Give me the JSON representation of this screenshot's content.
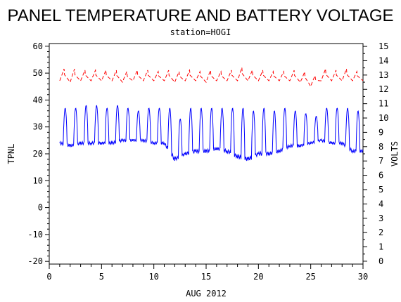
{
  "chart_data": {
    "type": "line",
    "title": "PANEL TEMPERATURE AND BATTERY VOLTAGE",
    "subtitle": "station=HOGI",
    "xlabel": "AUG 2012",
    "ylabel_left": "TPNL",
    "ylabel_right": "VOLTS",
    "xlim": [
      0,
      30
    ],
    "ylim_left": [
      -21,
      61
    ],
    "ylim_right": [
      -0.2,
      15.2
    ],
    "x_ticks": [
      0,
      5,
      10,
      15,
      20,
      25,
      30
    ],
    "y_left_ticks": [
      -20,
      -10,
      0,
      10,
      20,
      30,
      40,
      50,
      60
    ],
    "y_right_ticks": [
      0,
      1,
      2,
      3,
      4,
      5,
      6,
      7,
      8,
      9,
      10,
      11,
      12,
      13,
      14,
      15
    ],
    "grid": false,
    "legend": "none",
    "series": [
      {
        "axis": "left",
        "color": "#0000ff",
        "style": "solid",
        "daily_peaks": [
          37,
          37,
          38,
          38,
          37,
          38,
          37,
          36,
          37,
          37,
          37,
          33,
          37,
          37,
          37,
          37,
          37,
          37,
          36,
          37,
          36,
          37,
          36,
          35,
          34,
          37,
          37,
          37,
          36
        ],
        "daily_lows": [
          24,
          23,
          24,
          24,
          24,
          24,
          25,
          25,
          25,
          24,
          24,
          18,
          20,
          21,
          21,
          22,
          21,
          19,
          18,
          20,
          20,
          21,
          23,
          23,
          24,
          25,
          24,
          24,
          21
        ],
        "start_x": 1.0,
        "end_x": 30.0,
        "points_per_day": 24
      },
      {
        "axis": "right",
        "color": "#ff0000",
        "style": "dashed",
        "daily_peaks": [
          13.5,
          13.5,
          13.4,
          13.4,
          13.4,
          13.4,
          13.3,
          13.4,
          13.4,
          13.3,
          13.4,
          13.3,
          13.4,
          13.3,
          13.4,
          13.3,
          13.4,
          13.6,
          13.4,
          13.4,
          13.3,
          13.3,
          13.4,
          13.3,
          13.0,
          13.5,
          13.4,
          13.5,
          13.3
        ],
        "daily_lows": [
          12.6,
          12.5,
          12.6,
          12.6,
          12.6,
          12.6,
          12.5,
          12.6,
          12.6,
          12.6,
          12.6,
          12.5,
          12.6,
          12.6,
          12.5,
          12.6,
          12.6,
          12.6,
          12.6,
          12.6,
          12.6,
          12.6,
          12.6,
          12.5,
          12.2,
          12.6,
          12.6,
          12.6,
          12.6
        ],
        "start_x": 1.0,
        "end_x": 30.0,
        "points_per_day": 24
      }
    ]
  }
}
